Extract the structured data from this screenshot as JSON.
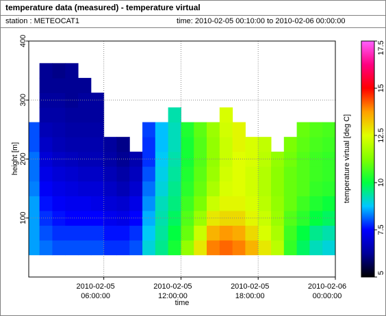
{
  "chart_data": {
    "type": "heatmap",
    "title": "temperature data (measured) - temperature virtual",
    "station": "station : METEOCAT1",
    "time_range": "time: 2010-02-05 00:10:00 to 2010-02-06 00:00:00",
    "x_label": "time",
    "y_label": "height [m]",
    "colorbar_label": "temperature virtual [deg C]",
    "xlim": [
      "2010-02-05 00:10:00",
      "2010-02-06 00:00:00"
    ],
    "xticks": [
      {
        "value": "2010-02-05 06:00:00",
        "label": [
          "2010-02-05",
          "06:00:00"
        ]
      },
      {
        "value": "2010-02-05 12:00:00",
        "label": [
          "2010-02-05",
          "12:00:00"
        ]
      },
      {
        "value": "2010-02-05 18:00:00",
        "label": [
          "2010-02-05",
          "18:00:00"
        ]
      },
      {
        "value": "2010-02-06 00:00:00",
        "label": [
          "2010-02-06",
          "00:00:00"
        ]
      }
    ],
    "ylim": [
      0,
      400
    ],
    "yticks": [
      100,
      200,
      300,
      400
    ],
    "clim": [
      5,
      17.5
    ],
    "cticks": [
      5,
      7.5,
      10,
      12.5,
      15,
      17.5
    ],
    "colormap": [
      "#000000",
      "#00009a",
      "#0000ff",
      "#00c8ff",
      "#00ff40",
      "#80ff00",
      "#e0ff00",
      "#ffa000",
      "#ff0000",
      "#ff0080",
      "#ff60ff"
    ],
    "grid": true,
    "x": [
      "2010-02-05 00:30:00",
      "2010-02-05 01:30:00",
      "2010-02-05 02:30:00",
      "2010-02-05 03:30:00",
      "2010-02-05 04:30:00",
      "2010-02-05 05:30:00",
      "2010-02-05 06:30:00",
      "2010-02-05 07:30:00",
      "2010-02-05 08:30:00",
      "2010-02-05 09:30:00",
      "2010-02-05 10:30:00",
      "2010-02-05 11:30:00",
      "2010-02-05 12:30:00",
      "2010-02-05 13:30:00",
      "2010-02-05 14:30:00",
      "2010-02-05 15:30:00",
      "2010-02-05 16:30:00",
      "2010-02-05 17:30:00",
      "2010-02-05 18:30:00",
      "2010-02-05 19:30:00",
      "2010-02-05 20:30:00",
      "2010-02-05 21:30:00",
      "2010-02-05 22:30:00",
      "2010-02-05 23:30:00"
    ],
    "y": [
      50,
      75,
      100,
      125,
      150,
      175,
      200,
      225,
      250,
      275,
      300,
      325,
      350
    ],
    "z": [
      [
        8.5,
        8.5,
        8.5,
        8.5,
        8.3,
        8.2,
        8.2,
        8.0,
        8.0,
        null,
        null,
        null,
        null
      ],
      [
        8.2,
        8.0,
        7.8,
        7.6,
        7.4,
        7.2,
        7.0,
        6.8,
        6.6,
        6.4,
        6.3,
        6.2,
        6.2
      ],
      [
        8.0,
        7.8,
        7.6,
        7.4,
        7.2,
        7.0,
        6.8,
        6.6,
        6.5,
        6.4,
        6.3,
        6.2,
        6.1
      ],
      [
        8.0,
        7.8,
        7.5,
        7.3,
        7.1,
        6.9,
        6.7,
        6.5,
        6.4,
        6.3,
        6.2,
        6.2,
        6.2
      ],
      [
        8.0,
        7.8,
        7.5,
        7.3,
        7.0,
        6.8,
        6.6,
        6.5,
        6.4,
        6.3,
        6.3,
        6.2,
        null
      ],
      [
        8.0,
        7.8,
        7.5,
        7.2,
        7.0,
        6.8,
        6.6,
        6.5,
        6.4,
        6.3,
        6.3,
        null,
        null
      ],
      [
        7.8,
        7.6,
        7.3,
        7.0,
        6.8,
        6.6,
        6.4,
        6.3,
        null,
        null,
        null,
        null,
        null
      ],
      [
        7.8,
        7.6,
        7.2,
        6.9,
        6.6,
        6.4,
        6.2,
        6.1,
        null,
        null,
        null,
        null,
        null
      ],
      [
        8.0,
        7.8,
        7.5,
        7.2,
        6.9,
        6.7,
        6.5,
        null,
        null,
        null,
        null,
        null,
        null
      ],
      [
        9.0,
        8.8,
        8.6,
        8.4,
        8.2,
        8.0,
        7.8,
        7.8,
        7.9,
        null,
        null,
        null,
        null
      ],
      [
        9.5,
        9.4,
        9.3,
        9.2,
        9.0,
        8.9,
        8.8,
        8.7,
        8.7,
        null,
        null,
        null,
        null
      ],
      [
        10.2,
        10.0,
        9.8,
        9.6,
        9.5,
        9.4,
        9.3,
        9.2,
        9.2,
        9.3,
        null,
        null,
        null
      ],
      [
        11.5,
        11.0,
        10.8,
        10.6,
        10.4,
        10.3,
        10.2,
        10.2,
        10.3,
        null,
        null,
        null,
        null
      ],
      [
        12.8,
        12.2,
        11.6,
        11.2,
        11.0,
        10.9,
        10.8,
        10.8,
        10.9,
        null,
        null,
        null,
        null
      ],
      [
        14.0,
        13.5,
        12.8,
        12.2,
        11.8,
        11.6,
        11.5,
        11.5,
        11.6,
        null,
        null,
        null,
        null
      ],
      [
        14.2,
        13.8,
        13.0,
        12.6,
        12.4,
        12.3,
        12.2,
        12.2,
        12.3,
        12.4,
        null,
        null,
        null
      ],
      [
        14.0,
        13.6,
        13.0,
        12.6,
        12.5,
        12.5,
        12.5,
        12.6,
        12.6,
        null,
        null,
        null,
        null
      ],
      [
        13.5,
        13.0,
        12.6,
        12.4,
        12.3,
        12.3,
        12.4,
        12.4,
        null,
        null,
        null,
        null,
        null
      ],
      [
        12.8,
        12.4,
        12.2,
        12.0,
        11.9,
        11.9,
        12.0,
        12.1,
        null,
        null,
        null,
        null,
        null
      ],
      [
        12.0,
        11.8,
        11.6,
        11.5,
        11.4,
        11.4,
        11.5,
        null,
        null,
        null,
        null,
        null,
        null
      ],
      [
        10.5,
        10.6,
        10.8,
        11.0,
        11.0,
        11.0,
        11.1,
        11.2,
        null,
        null,
        null,
        null,
        null
      ],
      [
        9.8,
        10.0,
        10.4,
        10.6,
        10.8,
        10.8,
        10.8,
        10.9,
        11.0,
        null,
        null,
        null,
        null
      ],
      [
        9.2,
        9.5,
        10.0,
        10.3,
        10.5,
        10.6,
        10.6,
        10.7,
        10.8,
        null,
        null,
        null,
        null
      ],
      [
        9.0,
        9.3,
        9.8,
        10.1,
        10.4,
        10.5,
        10.5,
        10.6,
        10.7,
        null,
        null,
        null,
        null
      ]
    ]
  }
}
